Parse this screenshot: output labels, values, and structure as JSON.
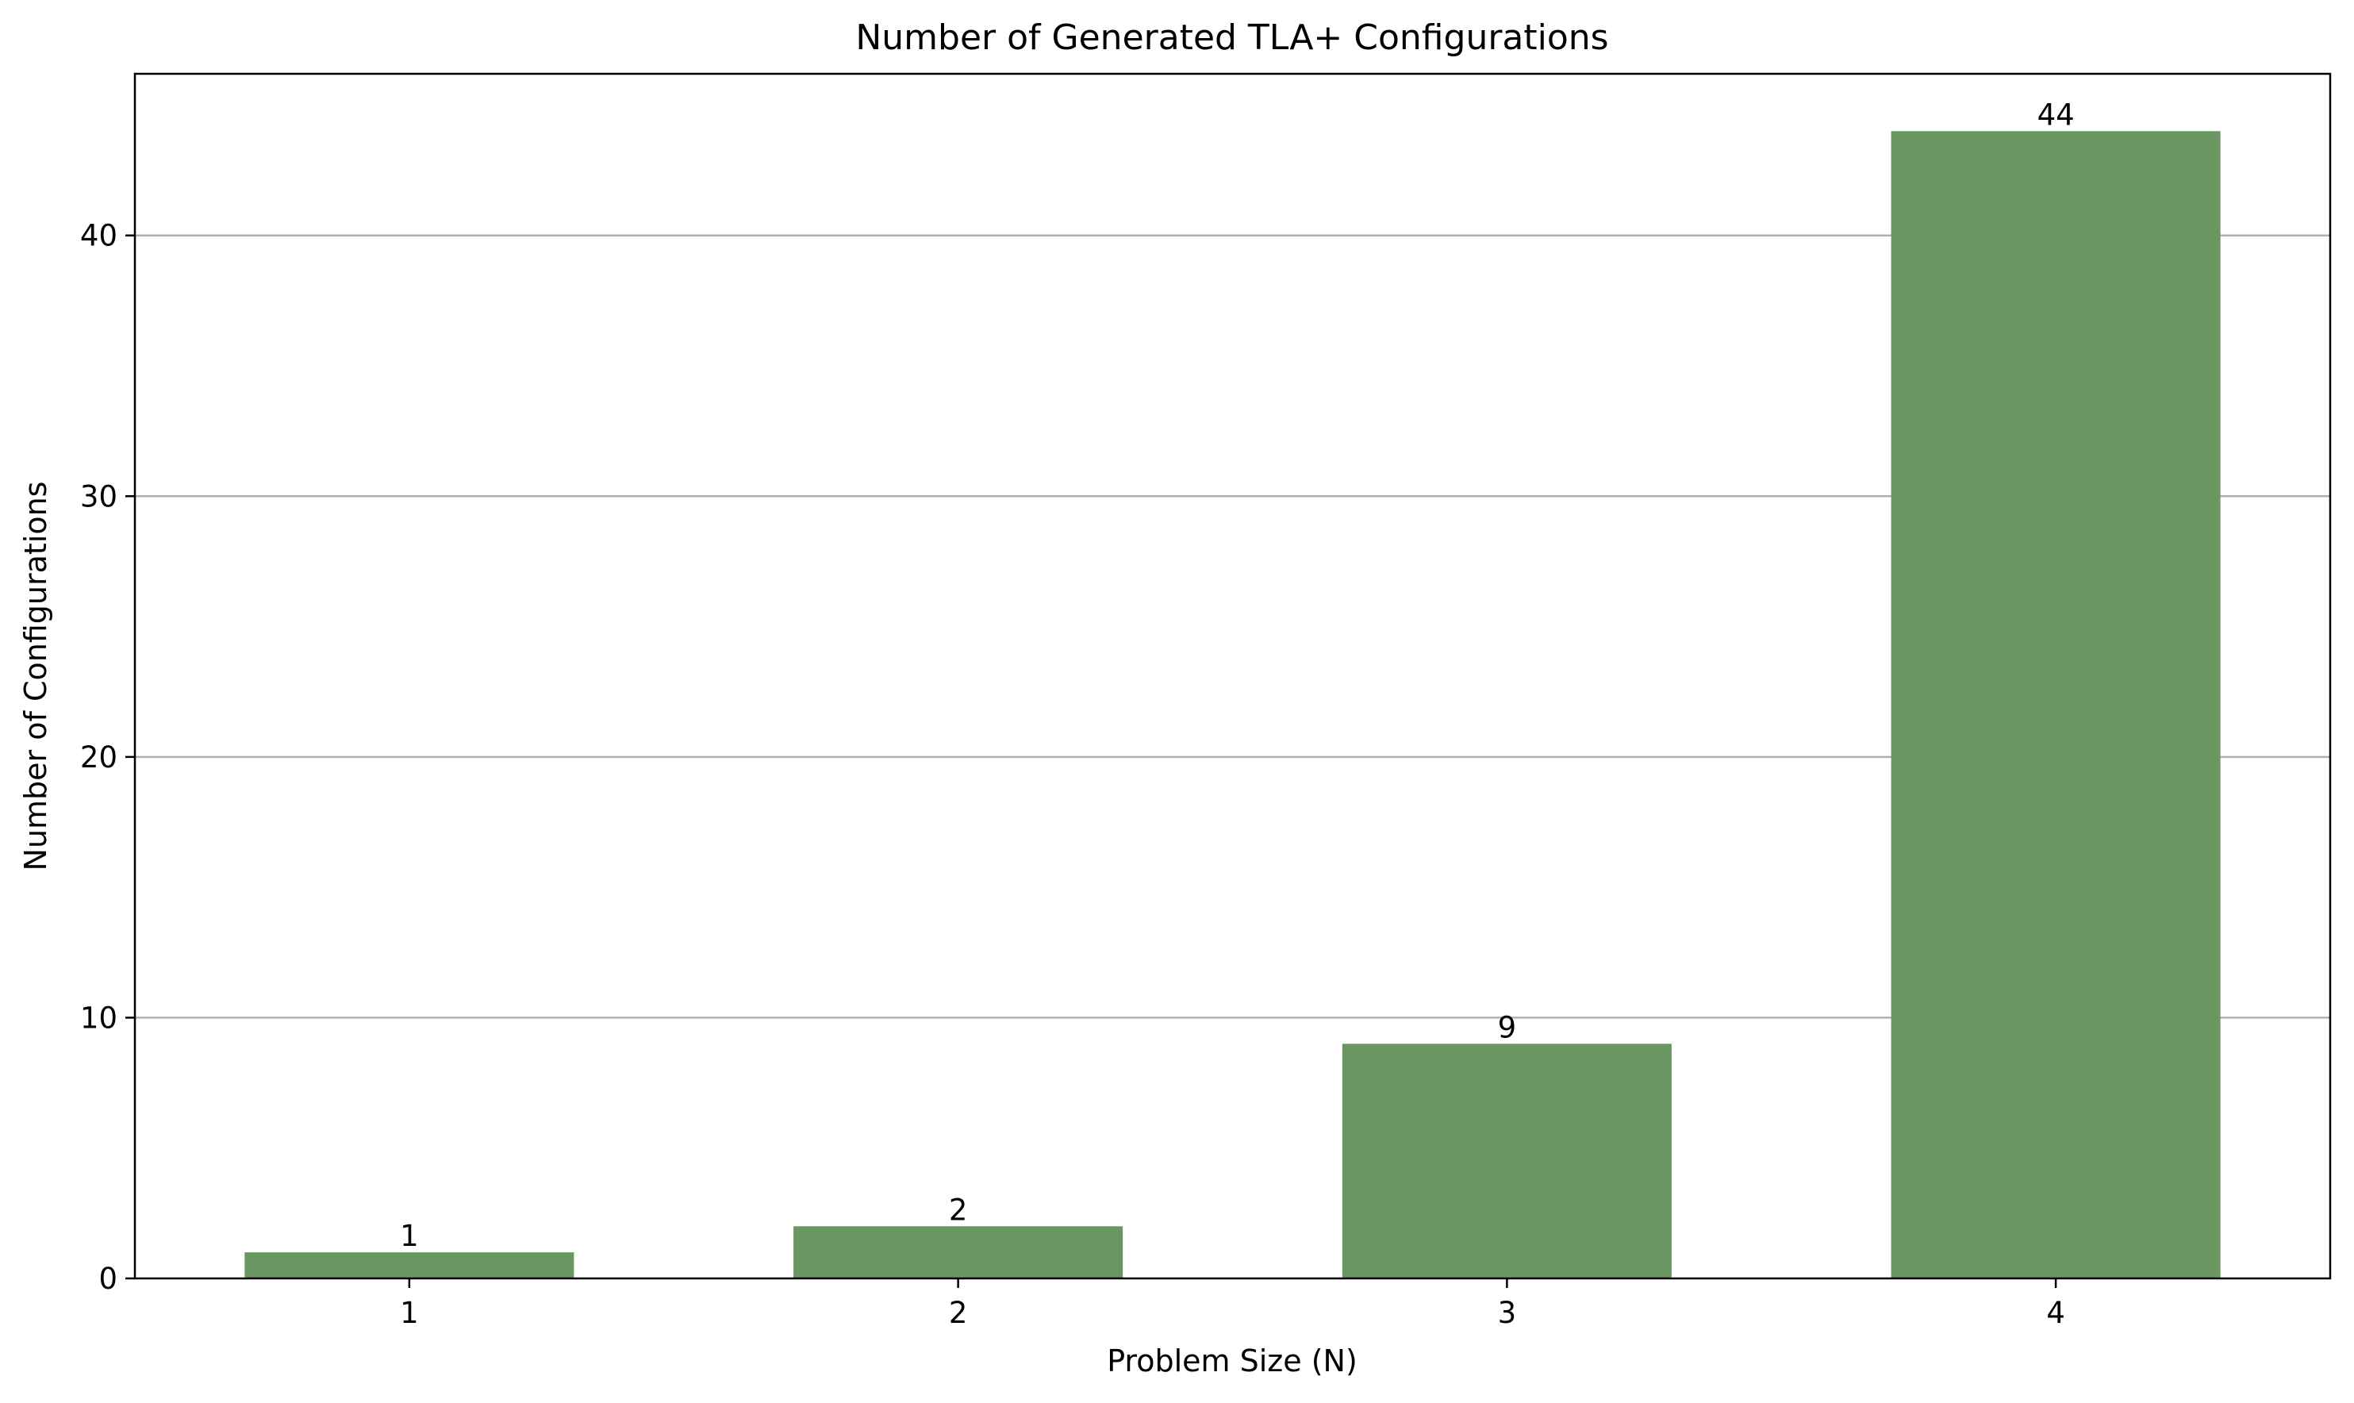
{
  "chart_data": {
    "type": "bar",
    "title": "Number of Generated TLA+ Configurations",
    "xlabel": "Problem Size (N)",
    "ylabel": "Number of Configurations",
    "categories": [
      "1",
      "2",
      "3",
      "4"
    ],
    "values": [
      1,
      2,
      9,
      44
    ],
    "data_labels": [
      "1",
      "2",
      "9",
      "44"
    ],
    "ylim": [
      0,
      46.2
    ],
    "yticks": [
      0,
      10,
      20,
      30,
      40
    ],
    "grid": "y-axis only",
    "legend": "none",
    "bar_color": "#6a9661"
  }
}
